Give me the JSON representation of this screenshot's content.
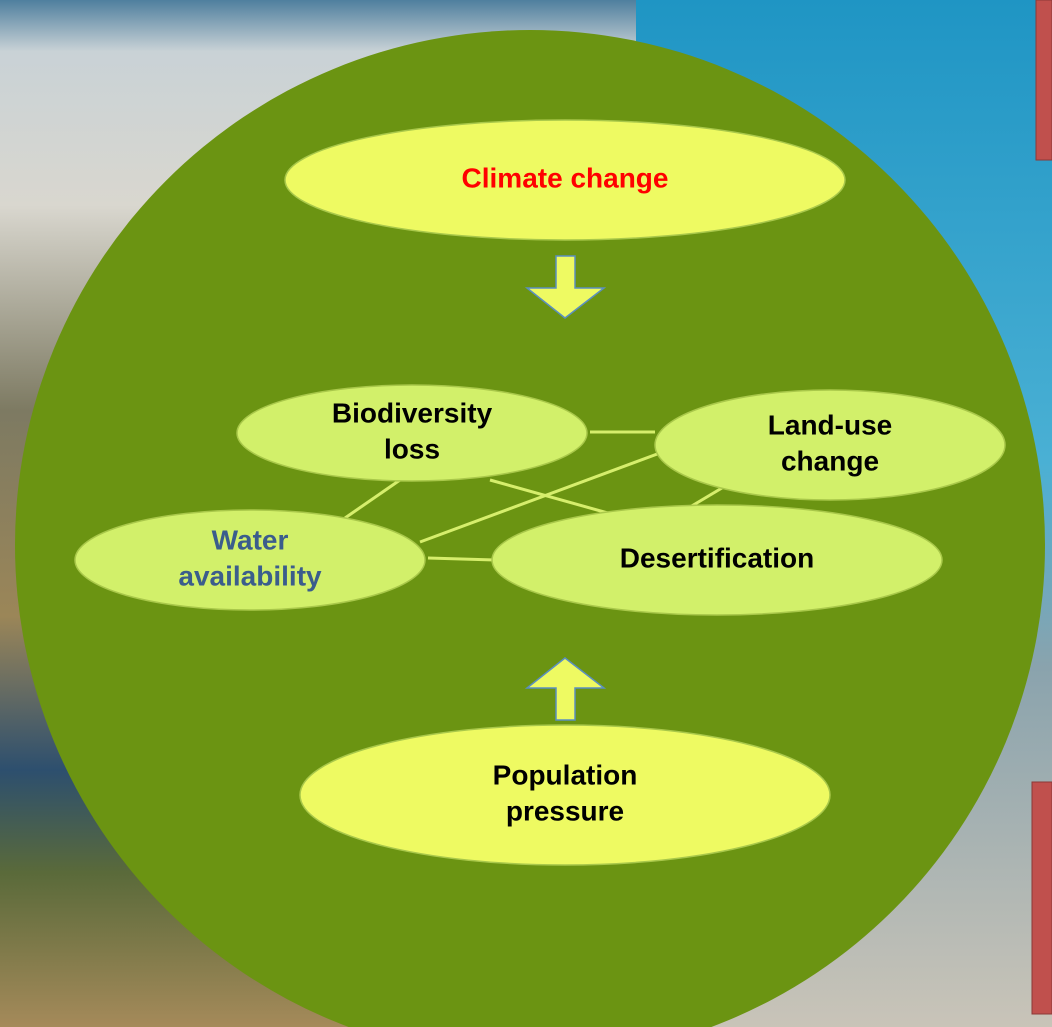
{
  "nodes": [
    {
      "label": [
        "Climate change"
      ]
    },
    {
      "label": [
        "Biodiversity",
        "loss"
      ]
    },
    {
      "label": [
        "Land-use",
        "change"
      ]
    },
    {
      "label": [
        "Water",
        "availability"
      ]
    },
    {
      "label": [
        "Desertification"
      ]
    },
    {
      "label": [
        "Population",
        "pressure"
      ]
    }
  ]
}
